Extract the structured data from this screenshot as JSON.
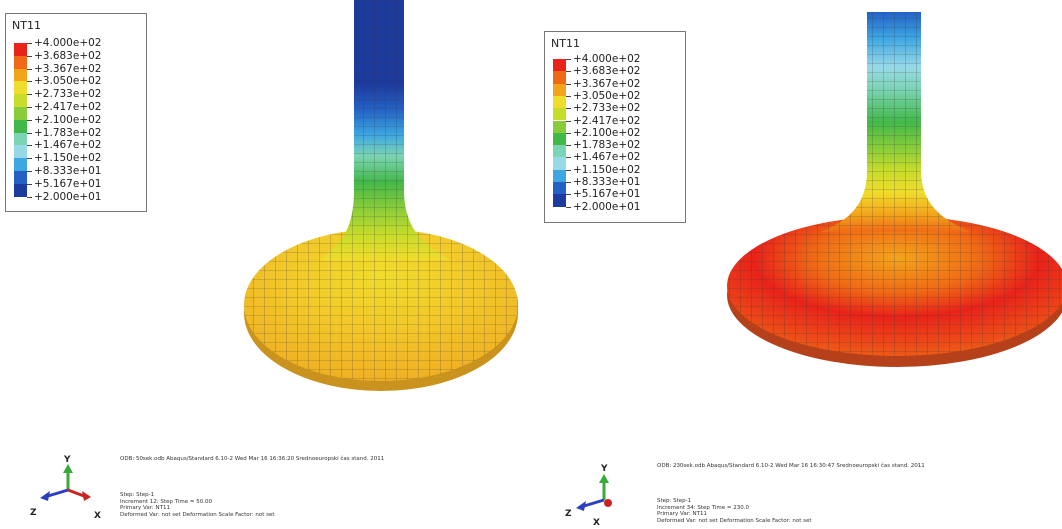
{
  "legend_colors": [
    "#e8231a",
    "#ef6a16",
    "#f2a51c",
    "#f0dc2c",
    "#c7dc2b",
    "#88cc3a",
    "#43b84a",
    "#7cd4b4",
    "#98d9e8",
    "#3ea7e2",
    "#2461c4",
    "#1d3a9d"
  ],
  "panels": [
    {
      "legend": {
        "title": "NT11",
        "values": [
          "+4.000e+02",
          "+3.683e+02",
          "+3.367e+02",
          "+3.050e+02",
          "+2.733e+02",
          "+2.417e+02",
          "+2.100e+02",
          "+1.783e+02",
          "+1.467e+02",
          "+1.150e+02",
          "+8.333e+01",
          "+5.167e+01",
          "+2.000e+01"
        ]
      },
      "odb_line": "ODB: 50sek.odb    Abaqus/Standard 6.10-2    Wed Mar 16 16:36:20 Srednoeuropski čas stand. 2011",
      "step_info": [
        "Step: Step-1",
        "Increment    12: Step Time =    50.00",
        "Primary Var: NT11",
        "Deformed Var: not set   Deformation Scale Factor: not set"
      ],
      "axes": {
        "y": "Y",
        "z": "Z",
        "x": "X"
      }
    },
    {
      "legend": {
        "title": "NT11",
        "values": [
          "+4.000e+02",
          "+3.683e+02",
          "+3.367e+02",
          "+3.050e+02",
          "+2.733e+02",
          "+2.417e+02",
          "+2.100e+02",
          "+1.783e+02",
          "+1.467e+02",
          "+1.150e+02",
          "+8.333e+01",
          "+5.167e+01",
          "+2.000e+01"
        ]
      },
      "odb_line": "ODB: 230sek.odb    Abaqus/Standard 6.10-2    Wed Mar 16 16:30:47 Srednoeuropski čas stand. 2011",
      "step_info": [
        "Step: Step-1",
        "Increment    34: Step Time =    230.0",
        "Primary Var: NT11",
        "Deformed Var: not set   Deformation Scale Factor: not set"
      ],
      "axes": {
        "y": "Y",
        "z": "Z",
        "x": "X"
      }
    }
  ]
}
